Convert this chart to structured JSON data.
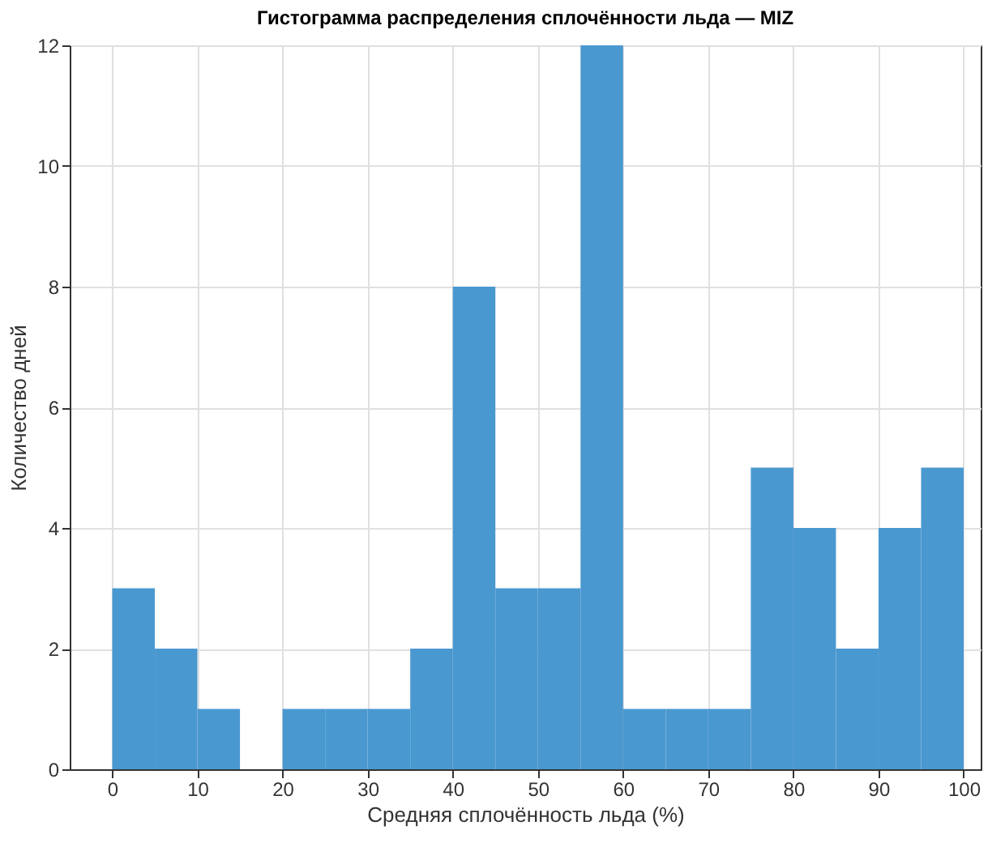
{
  "chart_data": {
    "type": "histogram",
    "title": "Гистограмма распределения сплочённости льда — MIZ",
    "xlabel": "Средняя сплочённость льда (%)",
    "ylabel": "Количество дней",
    "bins": [
      0,
      5,
      10,
      15,
      20,
      25,
      30,
      35,
      40,
      45,
      50,
      55,
      60,
      65,
      70,
      75,
      80,
      85,
      90,
      95,
      100
    ],
    "values": [
      3,
      2,
      1,
      0,
      1,
      1,
      1,
      2,
      8,
      3,
      3,
      12,
      1,
      1,
      1,
      5,
      4,
      2,
      4,
      5
    ],
    "color": "#4a98d0",
    "xlim": [
      -5,
      102
    ],
    "xticks": [
      0,
      10,
      20,
      30,
      40,
      50,
      60,
      70,
      80,
      90,
      100
    ],
    "ylim": [
      0,
      12
    ],
    "yticks": [
      0,
      2,
      4,
      6,
      8,
      10,
      12
    ],
    "grid": true
  }
}
